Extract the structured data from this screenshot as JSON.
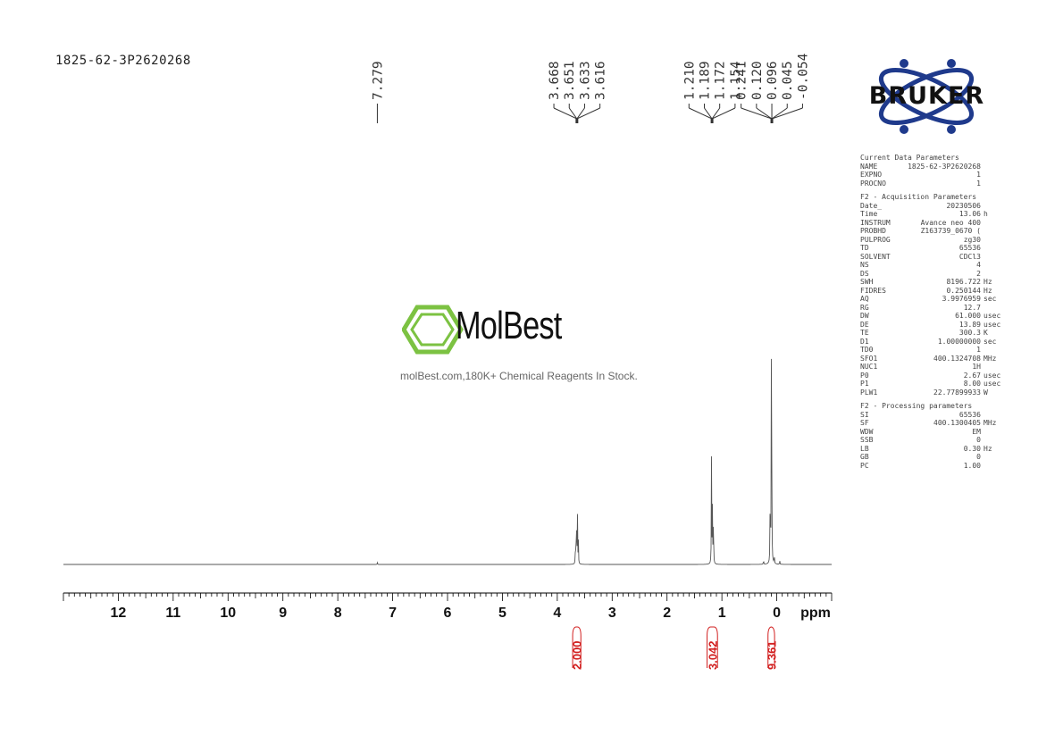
{
  "header": {
    "sample_name": "1825-62-3P2620268"
  },
  "logo": {
    "text": "BRUKER",
    "color": "#1f3a8c"
  },
  "watermark": {
    "brand": "MolBest",
    "tagline": "molBest.com,180K+ Chemical Reagents In Stock.",
    "icon": "benzene-ring-icon",
    "icon_color": "#7cc242"
  },
  "parameters": [
    {
      "title": "Current Data Parameters",
      "rows": [
        {
          "key": "NAME",
          "value": "1825-62-3P2620268",
          "unit": ""
        },
        {
          "key": "EXPNO",
          "value": "1",
          "unit": ""
        },
        {
          "key": "PROCNO",
          "value": "1",
          "unit": ""
        }
      ]
    },
    {
      "title": "F2 - Acquisition Parameters",
      "rows": [
        {
          "key": "Date_",
          "value": "20230506",
          "unit": ""
        },
        {
          "key": "Time",
          "value": "13.06",
          "unit": "h"
        },
        {
          "key": "INSTRUM",
          "value": "Avance neo 400",
          "unit": ""
        },
        {
          "key": "PROBHD",
          "value": "Z163739_0670 (",
          "unit": ""
        },
        {
          "key": "PULPROG",
          "value": "zg30",
          "unit": ""
        },
        {
          "key": "TD",
          "value": "65536",
          "unit": ""
        },
        {
          "key": "SOLVENT",
          "value": "CDCl3",
          "unit": ""
        },
        {
          "key": "NS",
          "value": "4",
          "unit": ""
        },
        {
          "key": "DS",
          "value": "2",
          "unit": ""
        },
        {
          "key": "SWH",
          "value": "8196.722",
          "unit": "Hz"
        },
        {
          "key": "FIDRES",
          "value": "0.250144",
          "unit": "Hz"
        },
        {
          "key": "AQ",
          "value": "3.9976959",
          "unit": "sec"
        },
        {
          "key": "RG",
          "value": "12.7",
          "unit": ""
        },
        {
          "key": "DW",
          "value": "61.000",
          "unit": "usec"
        },
        {
          "key": "DE",
          "value": "13.89",
          "unit": "usec"
        },
        {
          "key": "TE",
          "value": "300.3",
          "unit": "K"
        },
        {
          "key": "D1",
          "value": "1.00000000",
          "unit": "sec"
        },
        {
          "key": "TD0",
          "value": "1",
          "unit": ""
        },
        {
          "key": "SFO1",
          "value": "400.1324708",
          "unit": "MHz"
        },
        {
          "key": "NUC1",
          "value": "1H",
          "unit": ""
        },
        {
          "key": "P0",
          "value": "2.67",
          "unit": "usec"
        },
        {
          "key": "P1",
          "value": "8.00",
          "unit": "usec"
        },
        {
          "key": "PLW1",
          "value": "22.77899933",
          "unit": "W"
        }
      ]
    },
    {
      "title": "F2 - Processing parameters",
      "rows": [
        {
          "key": "SI",
          "value": "65536",
          "unit": ""
        },
        {
          "key": "SF",
          "value": "400.1300405",
          "unit": "MHz"
        },
        {
          "key": "WDW",
          "value": "EM",
          "unit": ""
        },
        {
          "key": "SSB",
          "value": "0",
          "unit": ""
        },
        {
          "key": "LB",
          "value": "0.30",
          "unit": "Hz"
        },
        {
          "key": "GB",
          "value": "0",
          "unit": ""
        },
        {
          "key": "PC",
          "value": "1.00",
          "unit": ""
        }
      ]
    }
  ],
  "chart_data": {
    "type": "line",
    "xlabel": "ppm",
    "xlim": [
      13.0,
      -1.0
    ],
    "x_ticks": [
      12,
      11,
      10,
      9,
      8,
      7,
      6,
      5,
      4,
      3,
      2,
      1,
      0
    ],
    "tick_labels": [
      "12",
      "11",
      "10",
      "9",
      "8",
      "7",
      "6",
      "5",
      "4",
      "3",
      "2",
      "1",
      "0"
    ],
    "peak_labels": [
      {
        "group": "7.279",
        "values": [
          "7.279"
        ],
        "anchor": 7.279
      },
      {
        "group": "3.6",
        "values": [
          "3.668",
          "3.651",
          "3.633",
          "3.616"
        ],
        "anchor": 3.642
      },
      {
        "group": "1.2",
        "values": [
          "1.210",
          "1.189",
          "1.172",
          "1.154"
        ],
        "anchor": 1.18
      },
      {
        "group": "0.1",
        "values": [
          "0.241",
          "0.120",
          "0.096",
          "0.045",
          "-0.054"
        ],
        "anchor": 0.09
      }
    ],
    "peaks": [
      {
        "ppm": 7.279,
        "height": 0.006
      },
      {
        "ppm": 3.668,
        "height": 0.07
      },
      {
        "ppm": 3.651,
        "height": 0.17
      },
      {
        "ppm": 3.633,
        "height": 0.17
      },
      {
        "ppm": 3.616,
        "height": 0.07
      },
      {
        "ppm": 1.189,
        "height": 0.32
      },
      {
        "ppm": 1.172,
        "height": 0.18
      },
      {
        "ppm": 1.154,
        "height": 0.17
      },
      {
        "ppm": 0.241,
        "height": 0.015
      },
      {
        "ppm": 0.12,
        "height": 0.25
      },
      {
        "ppm": 0.096,
        "height": 1.0
      },
      {
        "ppm": 0.045,
        "height": 0.03
      },
      {
        "ppm": -0.054,
        "height": 0.012
      }
    ],
    "integrals": [
      {
        "value": "2.000",
        "start": 3.72,
        "end": 3.57
      },
      {
        "value": "3.042",
        "start": 1.27,
        "end": 1.08
      },
      {
        "value": "9.361",
        "start": 0.16,
        "end": 0.04
      }
    ],
    "colors": {
      "spectrum": "#555555",
      "integral": "#d22020",
      "axis": "#000000"
    }
  }
}
